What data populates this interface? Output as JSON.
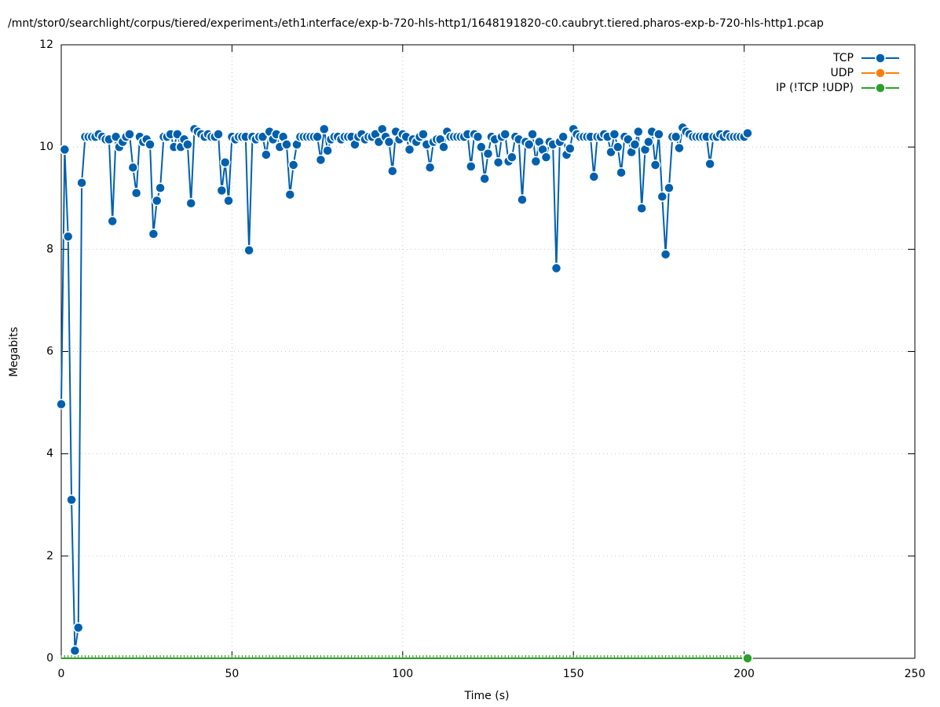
{
  "chart_data": {
    "type": "line",
    "title": "/mnt/stor0/searchlight/corpus/tiered/experiment₃/eth1ᵢnterface/exp-b-720-hls-http1/1648191820-c0.caubryt.tiered.pharos-exp-b-720-hls-http1.pcap",
    "x_label": "Time (s)",
    "y_label": "Megabits",
    "x": [
      0,
      1,
      2,
      3,
      4,
      5,
      6,
      7,
      8,
      9,
      10,
      11,
      12,
      13,
      14,
      15,
      16,
      17,
      18,
      19,
      20,
      21,
      22,
      23,
      24,
      25,
      26,
      27,
      28,
      29,
      30,
      31,
      32,
      33,
      34,
      35,
      36,
      37,
      38,
      39,
      40,
      41,
      42,
      43,
      44,
      45,
      46,
      47,
      48,
      49,
      50,
      51,
      52,
      53,
      54,
      55,
      56,
      57,
      58,
      59,
      60,
      61,
      62,
      63,
      64,
      65,
      66,
      67,
      68,
      69,
      70,
      71,
      72,
      73,
      74,
      75,
      76,
      77,
      78,
      79,
      80,
      81,
      82,
      83,
      84,
      85,
      86,
      87,
      88,
      89,
      90,
      91,
      92,
      93,
      94,
      95,
      96,
      97,
      98,
      99,
      100,
      101,
      102,
      103,
      104,
      105,
      106,
      107,
      108,
      109,
      110,
      111,
      112,
      113,
      114,
      115,
      116,
      117,
      118,
      119,
      120,
      121,
      122,
      123,
      124,
      125,
      126,
      127,
      128,
      129,
      130,
      131,
      132,
      133,
      134,
      135,
      136,
      137,
      138,
      139,
      140,
      141,
      142,
      143,
      144,
      145,
      146,
      147,
      148,
      149,
      150,
      151,
      152,
      153,
      154,
      155,
      156,
      157,
      158,
      159,
      160,
      161,
      162,
      163,
      164,
      165,
      166,
      167,
      168,
      169,
      170,
      171,
      172,
      173,
      174,
      175,
      176,
      177,
      178,
      179,
      180,
      181,
      182,
      183,
      184,
      185,
      186,
      187,
      188,
      189,
      190,
      191,
      192,
      193,
      194,
      195,
      196,
      197,
      198,
      199,
      200,
      201
    ],
    "series": [
      {
        "name": "TCP",
        "color": "#0060ad",
        "values": [
          4.97,
          9.95,
          8.25,
          3.1,
          0.15,
          0.6,
          9.3,
          10.2,
          10.2,
          10.2,
          10.2,
          10.25,
          10.2,
          10.15,
          10.15,
          8.55,
          10.2,
          10.0,
          10.1,
          10.2,
          10.25,
          9.6,
          9.1,
          10.2,
          10.1,
          10.15,
          10.05,
          8.3,
          8.95,
          9.2,
          10.2,
          10.2,
          10.25,
          10.0,
          10.25,
          10.0,
          10.15,
          10.05,
          8.9,
          10.35,
          10.3,
          10.25,
          10.2,
          10.25,
          10.2,
          10.2,
          10.25,
          9.15,
          9.7,
          8.95,
          10.2,
          10.15,
          10.2,
          10.2,
          10.2,
          7.98,
          10.2,
          10.15,
          10.2,
          10.2,
          9.85,
          10.3,
          10.15,
          10.25,
          10.0,
          10.2,
          10.05,
          9.07,
          9.65,
          10.05,
          10.2,
          10.2,
          10.2,
          10.2,
          10.2,
          10.2,
          9.75,
          10.35,
          9.93,
          10.15,
          10.2,
          10.2,
          10.15,
          10.2,
          10.2,
          10.2,
          10.05,
          10.2,
          10.25,
          10.15,
          10.2,
          10.2,
          10.25,
          10.1,
          10.35,
          10.2,
          10.1,
          9.53,
          10.3,
          10.15,
          10.25,
          10.2,
          9.95,
          10.15,
          10.1,
          10.2,
          10.25,
          10.05,
          9.6,
          10.1,
          10.15,
          10.15,
          10.0,
          10.3,
          10.2,
          10.2,
          10.2,
          10.2,
          10.2,
          10.25,
          9.62,
          10.25,
          10.2,
          10.0,
          9.38,
          9.87,
          10.2,
          10.15,
          9.7,
          10.2,
          10.25,
          9.72,
          9.8,
          10.2,
          10.15,
          8.97,
          10.1,
          10.05,
          10.25,
          9.72,
          10.1,
          9.95,
          9.8,
          10.1,
          10.05,
          7.63,
          10.1,
          10.2,
          9.85,
          9.97,
          10.35,
          10.25,
          10.2,
          10.2,
          10.2,
          10.2,
          9.42,
          10.2,
          10.2,
          10.25,
          10.2,
          9.9,
          10.25,
          10.0,
          9.5,
          10.2,
          10.15,
          9.9,
          10.05,
          10.3,
          8.8,
          9.95,
          10.1,
          10.3,
          9.65,
          10.25,
          9.03,
          7.9,
          9.2,
          10.2,
          10.2,
          9.98,
          10.38,
          10.3,
          10.25,
          10.2,
          10.2,
          10.2,
          10.2,
          10.2,
          9.67,
          10.2,
          10.2,
          10.25,
          10.2,
          10.25,
          10.2,
          10.2,
          10.2,
          10.2,
          10.2,
          10.27
        ]
      },
      {
        "name": "UDP",
        "color": "#ff7f0e",
        "values": [
          0,
          0,
          0,
          0,
          0,
          0,
          0,
          0,
          0,
          0,
          0,
          0,
          0,
          0,
          0,
          0,
          0,
          0,
          0,
          0,
          0,
          0,
          0,
          0,
          0,
          0,
          0,
          0,
          0,
          0,
          0,
          0,
          0,
          0,
          0,
          0,
          0,
          0,
          0,
          0,
          0,
          0,
          0,
          0,
          0,
          0,
          0,
          0,
          0,
          0,
          0,
          0,
          0,
          0,
          0,
          0,
          0,
          0,
          0,
          0,
          0,
          0,
          0,
          0,
          0,
          0,
          0,
          0,
          0,
          0,
          0,
          0,
          0,
          0,
          0,
          0,
          0,
          0,
          0,
          0,
          0,
          0,
          0,
          0,
          0,
          0,
          0,
          0,
          0,
          0,
          0,
          0,
          0,
          0,
          0,
          0,
          0,
          0,
          0,
          0,
          0,
          0,
          0,
          0,
          0,
          0,
          0,
          0,
          0,
          0,
          0,
          0,
          0,
          0,
          0,
          0,
          0,
          0,
          0,
          0,
          0,
          0,
          0,
          0,
          0,
          0,
          0,
          0,
          0,
          0,
          0,
          0,
          0,
          0,
          0,
          0,
          0,
          0,
          0,
          0,
          0,
          0,
          0,
          0,
          0,
          0,
          0,
          0,
          0,
          0,
          0,
          0,
          0,
          0,
          0,
          0,
          0,
          0,
          0,
          0,
          0,
          0,
          0,
          0,
          0,
          0,
          0,
          0,
          0,
          0,
          0,
          0,
          0,
          0,
          0,
          0,
          0,
          0,
          0,
          0,
          0,
          0,
          0,
          0,
          0,
          0,
          0,
          0,
          0,
          0,
          0,
          0,
          0,
          0,
          0,
          0,
          0,
          0,
          0,
          0,
          0,
          0
        ]
      },
      {
        "name": "IP (!TCP  !UDP)",
        "color": "#2ca02c",
        "values": [
          0,
          0,
          0,
          0,
          0,
          0,
          0,
          0,
          0,
          0,
          0,
          0,
          0,
          0,
          0,
          0,
          0,
          0,
          0,
          0,
          0,
          0,
          0,
          0,
          0,
          0,
          0,
          0,
          0,
          0,
          0,
          0,
          0,
          0,
          0,
          0,
          0,
          0,
          0,
          0,
          0,
          0,
          0,
          0,
          0,
          0,
          0,
          0,
          0,
          0,
          0,
          0,
          0,
          0,
          0,
          0,
          0,
          0,
          0,
          0,
          0,
          0,
          0,
          0,
          0,
          0,
          0,
          0,
          0,
          0,
          0,
          0,
          0,
          0,
          0,
          0,
          0,
          0,
          0,
          0,
          0,
          0,
          0,
          0,
          0,
          0,
          0,
          0,
          0,
          0,
          0,
          0,
          0,
          0,
          0,
          0,
          0,
          0,
          0,
          0,
          0,
          0,
          0,
          0,
          0,
          0,
          0,
          0,
          0,
          0,
          0,
          0,
          0,
          0,
          0,
          0,
          0,
          0,
          0,
          0,
          0,
          0,
          0,
          0,
          0,
          0,
          0,
          0,
          0,
          0,
          0,
          0,
          0,
          0,
          0,
          0,
          0,
          0,
          0,
          0,
          0,
          0,
          0,
          0,
          0,
          0,
          0,
          0,
          0,
          0,
          0,
          0,
          0,
          0,
          0,
          0,
          0,
          0,
          0,
          0,
          0,
          0,
          0,
          0,
          0,
          0,
          0,
          0,
          0,
          0,
          0,
          0,
          0,
          0,
          0,
          0,
          0,
          0,
          0,
          0,
          0,
          0,
          0,
          0,
          0,
          0,
          0,
          0,
          0,
          0,
          0,
          0,
          0,
          0,
          0,
          0,
          0,
          0,
          0,
          0,
          0,
          0
        ]
      }
    ],
    "xlim": [
      0,
      250
    ],
    "xticks": [
      0,
      50,
      100,
      150,
      200,
      250
    ],
    "ylim": [
      0,
      12
    ],
    "yticks": [
      0,
      2,
      4,
      6,
      8,
      10,
      12
    ],
    "grid": true,
    "legend": "top-right"
  }
}
